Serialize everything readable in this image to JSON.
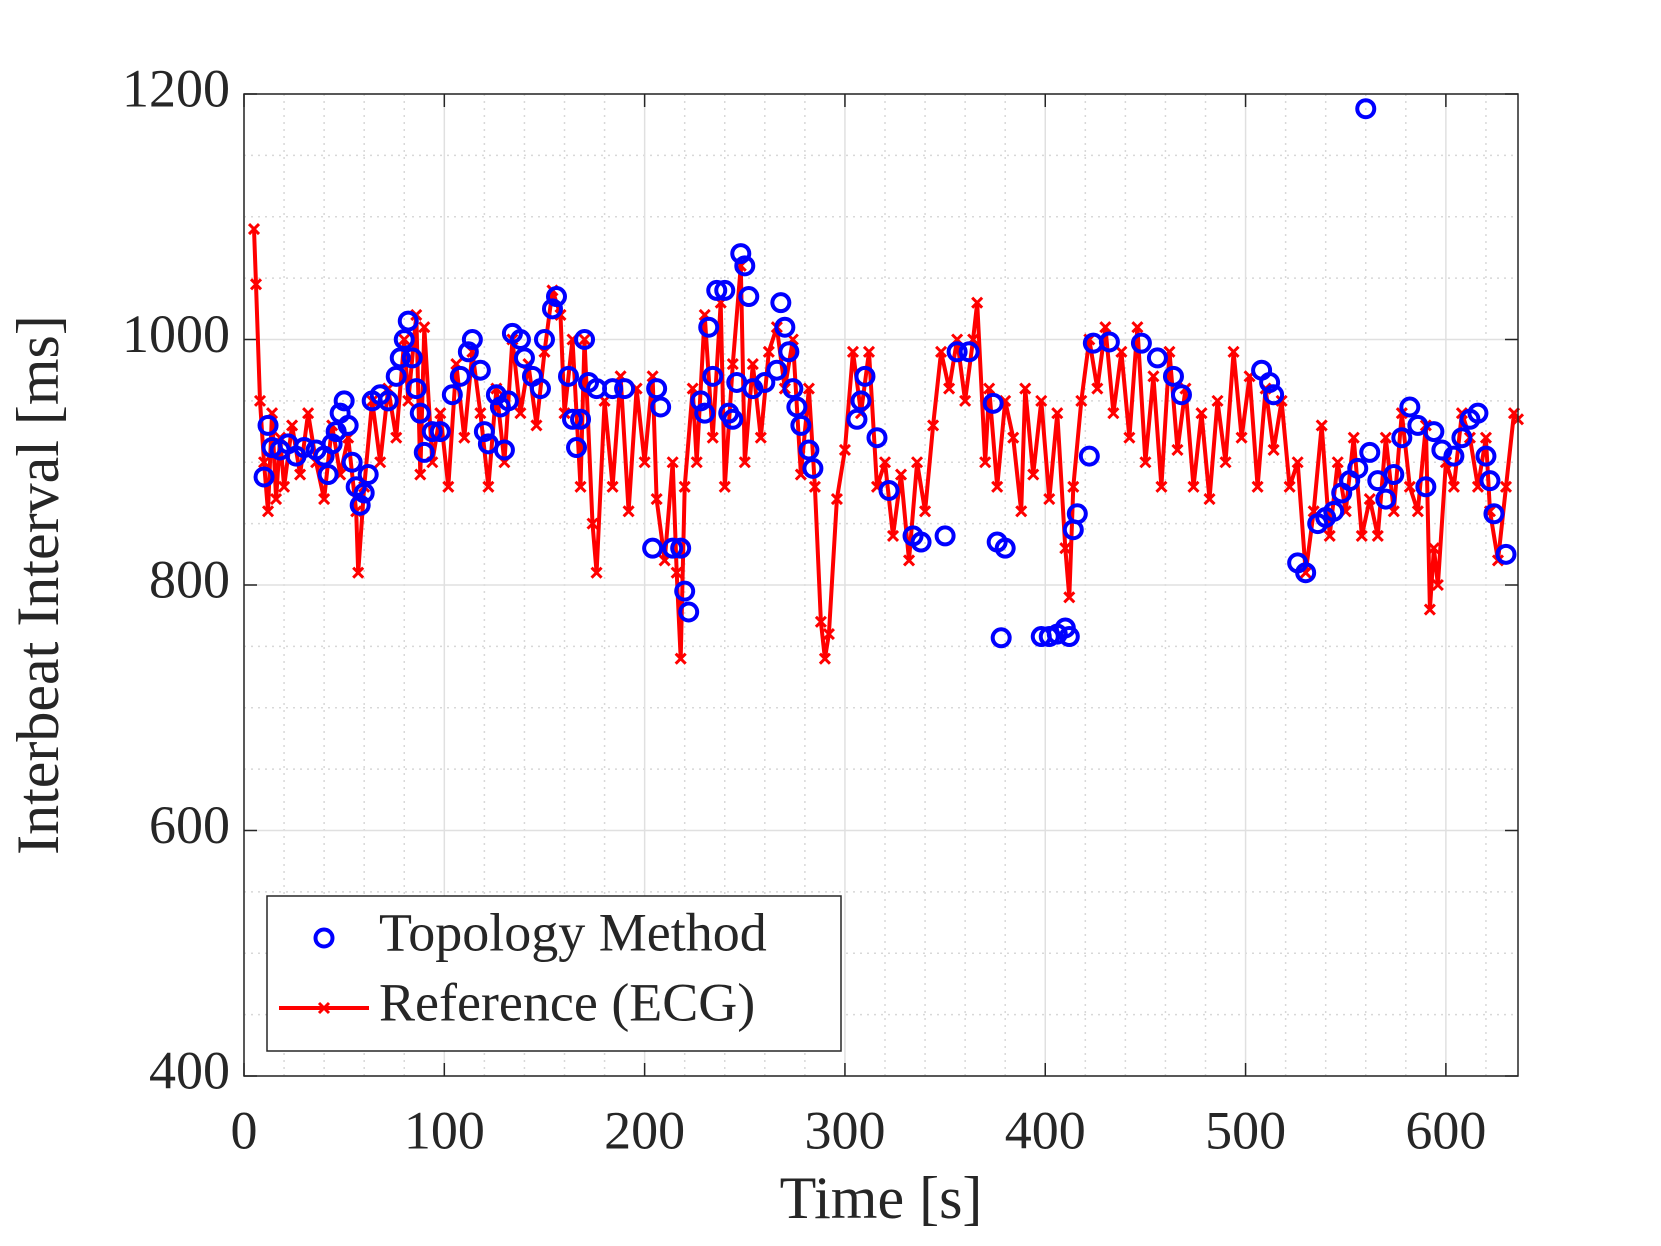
{
  "chart_data": {
    "type": "line",
    "xlabel": "Time [s]",
    "ylabel": "Interbeat Interval [ms]",
    "xlim": [
      0,
      636
    ],
    "ylim": [
      400,
      1200
    ],
    "xticks": [
      0,
      100,
      200,
      300,
      400,
      500,
      600
    ],
    "yticks": [
      400,
      600,
      800,
      1000,
      1200
    ],
    "xminorticks": [
      20,
      40,
      60,
      80,
      120,
      140,
      160,
      180,
      220,
      240,
      260,
      280,
      320,
      340,
      360,
      380,
      420,
      440,
      460,
      480,
      520,
      540,
      560,
      580,
      620
    ],
    "yminorticks": [
      450,
      500,
      550,
      650,
      700,
      750,
      850,
      900,
      950,
      1050,
      1100,
      1150
    ],
    "grid": true,
    "legend": "lower left",
    "series": [
      {
        "name": "Topology Method",
        "color": "#0000ff",
        "marker": "o",
        "line": false,
        "x": [
          10,
          12,
          14,
          18,
          22,
          26,
          30,
          36,
          40,
          42,
          44,
          46,
          48,
          50,
          52,
          54,
          56,
          58,
          60,
          62,
          64,
          68,
          72,
          76,
          78,
          80,
          82,
          84,
          86,
          88,
          90,
          94,
          98,
          104,
          108,
          112,
          114,
          118,
          120,
          122,
          126,
          128,
          130,
          132,
          134,
          138,
          140,
          144,
          148,
          150,
          154,
          156,
          162,
          164,
          166,
          168,
          170,
          172,
          176,
          184,
          190,
          204,
          206,
          208,
          214,
          218,
          220,
          222,
          228,
          230,
          232,
          234,
          236,
          240,
          242,
          244,
          246,
          248,
          250,
          252,
          254,
          260,
          266,
          268,
          270,
          272,
          274,
          276,
          278,
          282,
          284,
          306,
          308,
          310,
          316,
          322,
          334,
          338,
          350,
          356,
          362,
          374,
          376,
          378,
          380,
          398,
          402,
          406,
          410,
          412,
          414,
          416,
          422,
          424,
          432,
          448,
          456,
          464,
          468,
          508,
          512,
          514,
          526,
          530,
          536,
          540,
          544,
          548,
          552,
          556,
          560,
          562,
          566,
          570,
          574,
          578,
          582,
          586,
          590,
          594,
          598,
          604,
          608,
          612,
          616,
          620,
          622,
          624,
          630
        ],
        "values": [
          888,
          930,
          912,
          910,
          915,
          905,
          912,
          910,
          905,
          890,
          915,
          925,
          940,
          950,
          930,
          900,
          880,
          865,
          875,
          890,
          950,
          955,
          950,
          970,
          985,
          1000,
          1015,
          985,
          960,
          940,
          908,
          925,
          925,
          955,
          970,
          990,
          1000,
          975,
          925,
          915,
          955,
          945,
          910,
          950,
          1005,
          1000,
          985,
          970,
          960,
          1000,
          1025,
          1035,
          970,
          935,
          912,
          935,
          1000,
          965,
          960,
          960,
          960,
          830,
          960,
          945,
          830,
          830,
          795,
          778,
          950,
          940,
          1010,
          970,
          1040,
          1040,
          940,
          935,
          965,
          1070,
          1060,
          1035,
          960,
          965,
          975,
          1030,
          1010,
          990,
          960,
          945,
          930,
          910,
          895,
          935,
          950,
          970,
          920,
          877,
          840,
          835,
          840,
          990,
          990,
          948,
          835,
          757,
          830,
          758,
          758,
          760,
          765,
          758,
          845,
          858,
          905,
          997,
          998,
          997,
          985,
          970,
          955,
          975,
          965,
          955,
          818,
          810,
          850,
          855,
          860,
          875,
          885,
          895,
          1188,
          908,
          885,
          870,
          890,
          920,
          945,
          930,
          880,
          925,
          910,
          905,
          920,
          935,
          940,
          905,
          885,
          858,
          825
        ]
      },
      {
        "name": "Reference (ECG)",
        "color": "#ff0000",
        "marker": "x",
        "line": true,
        "x": [
          5,
          6,
          8,
          10,
          12,
          14,
          16,
          18,
          20,
          24,
          28,
          32,
          36,
          40,
          44,
          48,
          52,
          56,
          57,
          60,
          64,
          68,
          72,
          76,
          80,
          82,
          86,
          88,
          90,
          94,
          98,
          102,
          106,
          110,
          114,
          118,
          122,
          126,
          130,
          134,
          138,
          142,
          146,
          150,
          154,
          158,
          160,
          164,
          168,
          170,
          174,
          176,
          180,
          184,
          188,
          192,
          196,
          200,
          204,
          206,
          210,
          214,
          216,
          218,
          220,
          224,
          226,
          230,
          234,
          238,
          240,
          244,
          248,
          250,
          254,
          258,
          262,
          266,
          270,
          274,
          278,
          282,
          285,
          288,
          290,
          292,
          296,
          300,
          304,
          308,
          312,
          316,
          320,
          324,
          328,
          332,
          336,
          340,
          344,
          348,
          352,
          356,
          360,
          364,
          366,
          370,
          372,
          376,
          380,
          384,
          388,
          390,
          394,
          398,
          402,
          406,
          410,
          412,
          414,
          418,
          422,
          426,
          430,
          434,
          438,
          442,
          446,
          450,
          454,
          458,
          462,
          466,
          470,
          474,
          478,
          482,
          486,
          490,
          494,
          498,
          502,
          506,
          510,
          514,
          518,
          522,
          526,
          530,
          534,
          538,
          542,
          546,
          550,
          554,
          558,
          562,
          566,
          570,
          574,
          578,
          582,
          586,
          590,
          592,
          594,
          596,
          600,
          604,
          608,
          612,
          616,
          620,
          622,
          626,
          630,
          634,
          636
        ],
        "values": [
          1090,
          1045,
          950,
          900,
          860,
          940,
          870,
          920,
          880,
          930,
          890,
          940,
          900,
          870,
          930,
          890,
          920,
          860,
          810,
          880,
          950,
          900,
          960,
          920,
          1000,
          950,
          1020,
          890,
          1010,
          900,
          940,
          880,
          980,
          920,
          990,
          940,
          880,
          960,
          900,
          1000,
          940,
          980,
          930,
          990,
          1040,
          1020,
          940,
          1000,
          880,
          1000,
          850,
          810,
          950,
          880,
          970,
          860,
          960,
          900,
          970,
          870,
          820,
          900,
          810,
          740,
          880,
          960,
          900,
          1020,
          920,
          1030,
          880,
          980,
          1060,
          900,
          980,
          920,
          990,
          1010,
          960,
          1000,
          890,
          960,
          880,
          770,
          740,
          760,
          870,
          910,
          990,
          940,
          990,
          880,
          900,
          840,
          890,
          820,
          900,
          860,
          930,
          990,
          960,
          1000,
          950,
          1000,
          1030,
          900,
          960,
          880,
          950,
          920,
          860,
          960,
          890,
          950,
          870,
          940,
          830,
          790,
          880,
          950,
          1000,
          960,
          1010,
          940,
          990,
          920,
          1010,
          900,
          970,
          880,
          990,
          910,
          960,
          880,
          940,
          870,
          950,
          900,
          990,
          920,
          970,
          880,
          960,
          910,
          950,
          880,
          900,
          810,
          860,
          930,
          840,
          900,
          860,
          920,
          840,
          870,
          840,
          920,
          860,
          940,
          880,
          860,
          930,
          780,
          830,
          800,
          900,
          880,
          940,
          920,
          880,
          920,
          860,
          820,
          880,
          940,
          935
        ]
      }
    ]
  }
}
